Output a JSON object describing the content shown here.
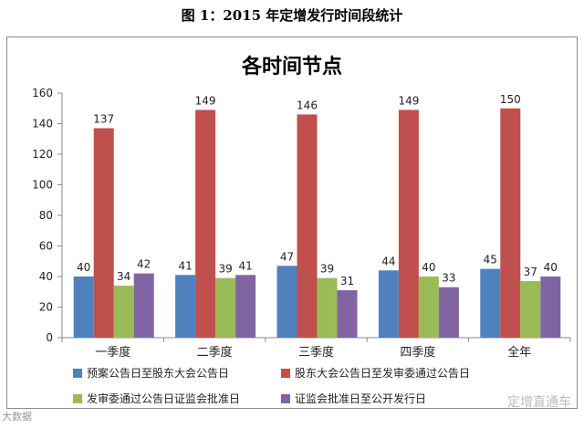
{
  "caption": "图 1：2015 年定增发行时间段统计",
  "chart_data": {
    "type": "bar",
    "title": "各时间节点",
    "categories": [
      "一季度",
      "二季度",
      "三季度",
      "四季度",
      "全年"
    ],
    "ylim": [
      0,
      160
    ],
    "yticks": [
      0,
      20,
      40,
      60,
      80,
      100,
      120,
      140,
      160
    ],
    "grid": false,
    "legend_position": "bottom",
    "series": [
      {
        "name": "预案公告日至股东大会公告日",
        "color": "#4f81bd",
        "values": [
          40,
          41,
          47,
          44,
          45
        ]
      },
      {
        "name": "股东大会公告日至发审委通过公告日",
        "color": "#c0504d",
        "values": [
          137,
          149,
          146,
          149,
          150
        ]
      },
      {
        "name": "发审委通过公告日证监会批准日",
        "color": "#9bbb59",
        "values": [
          34,
          39,
          39,
          40,
          37
        ]
      },
      {
        "name": "证监会批准日至公开发行日",
        "color": "#8064a2",
        "values": [
          42,
          41,
          31,
          33,
          40
        ]
      }
    ]
  },
  "watermark_left": "大数据",
  "watermark_right": "定增直通车"
}
